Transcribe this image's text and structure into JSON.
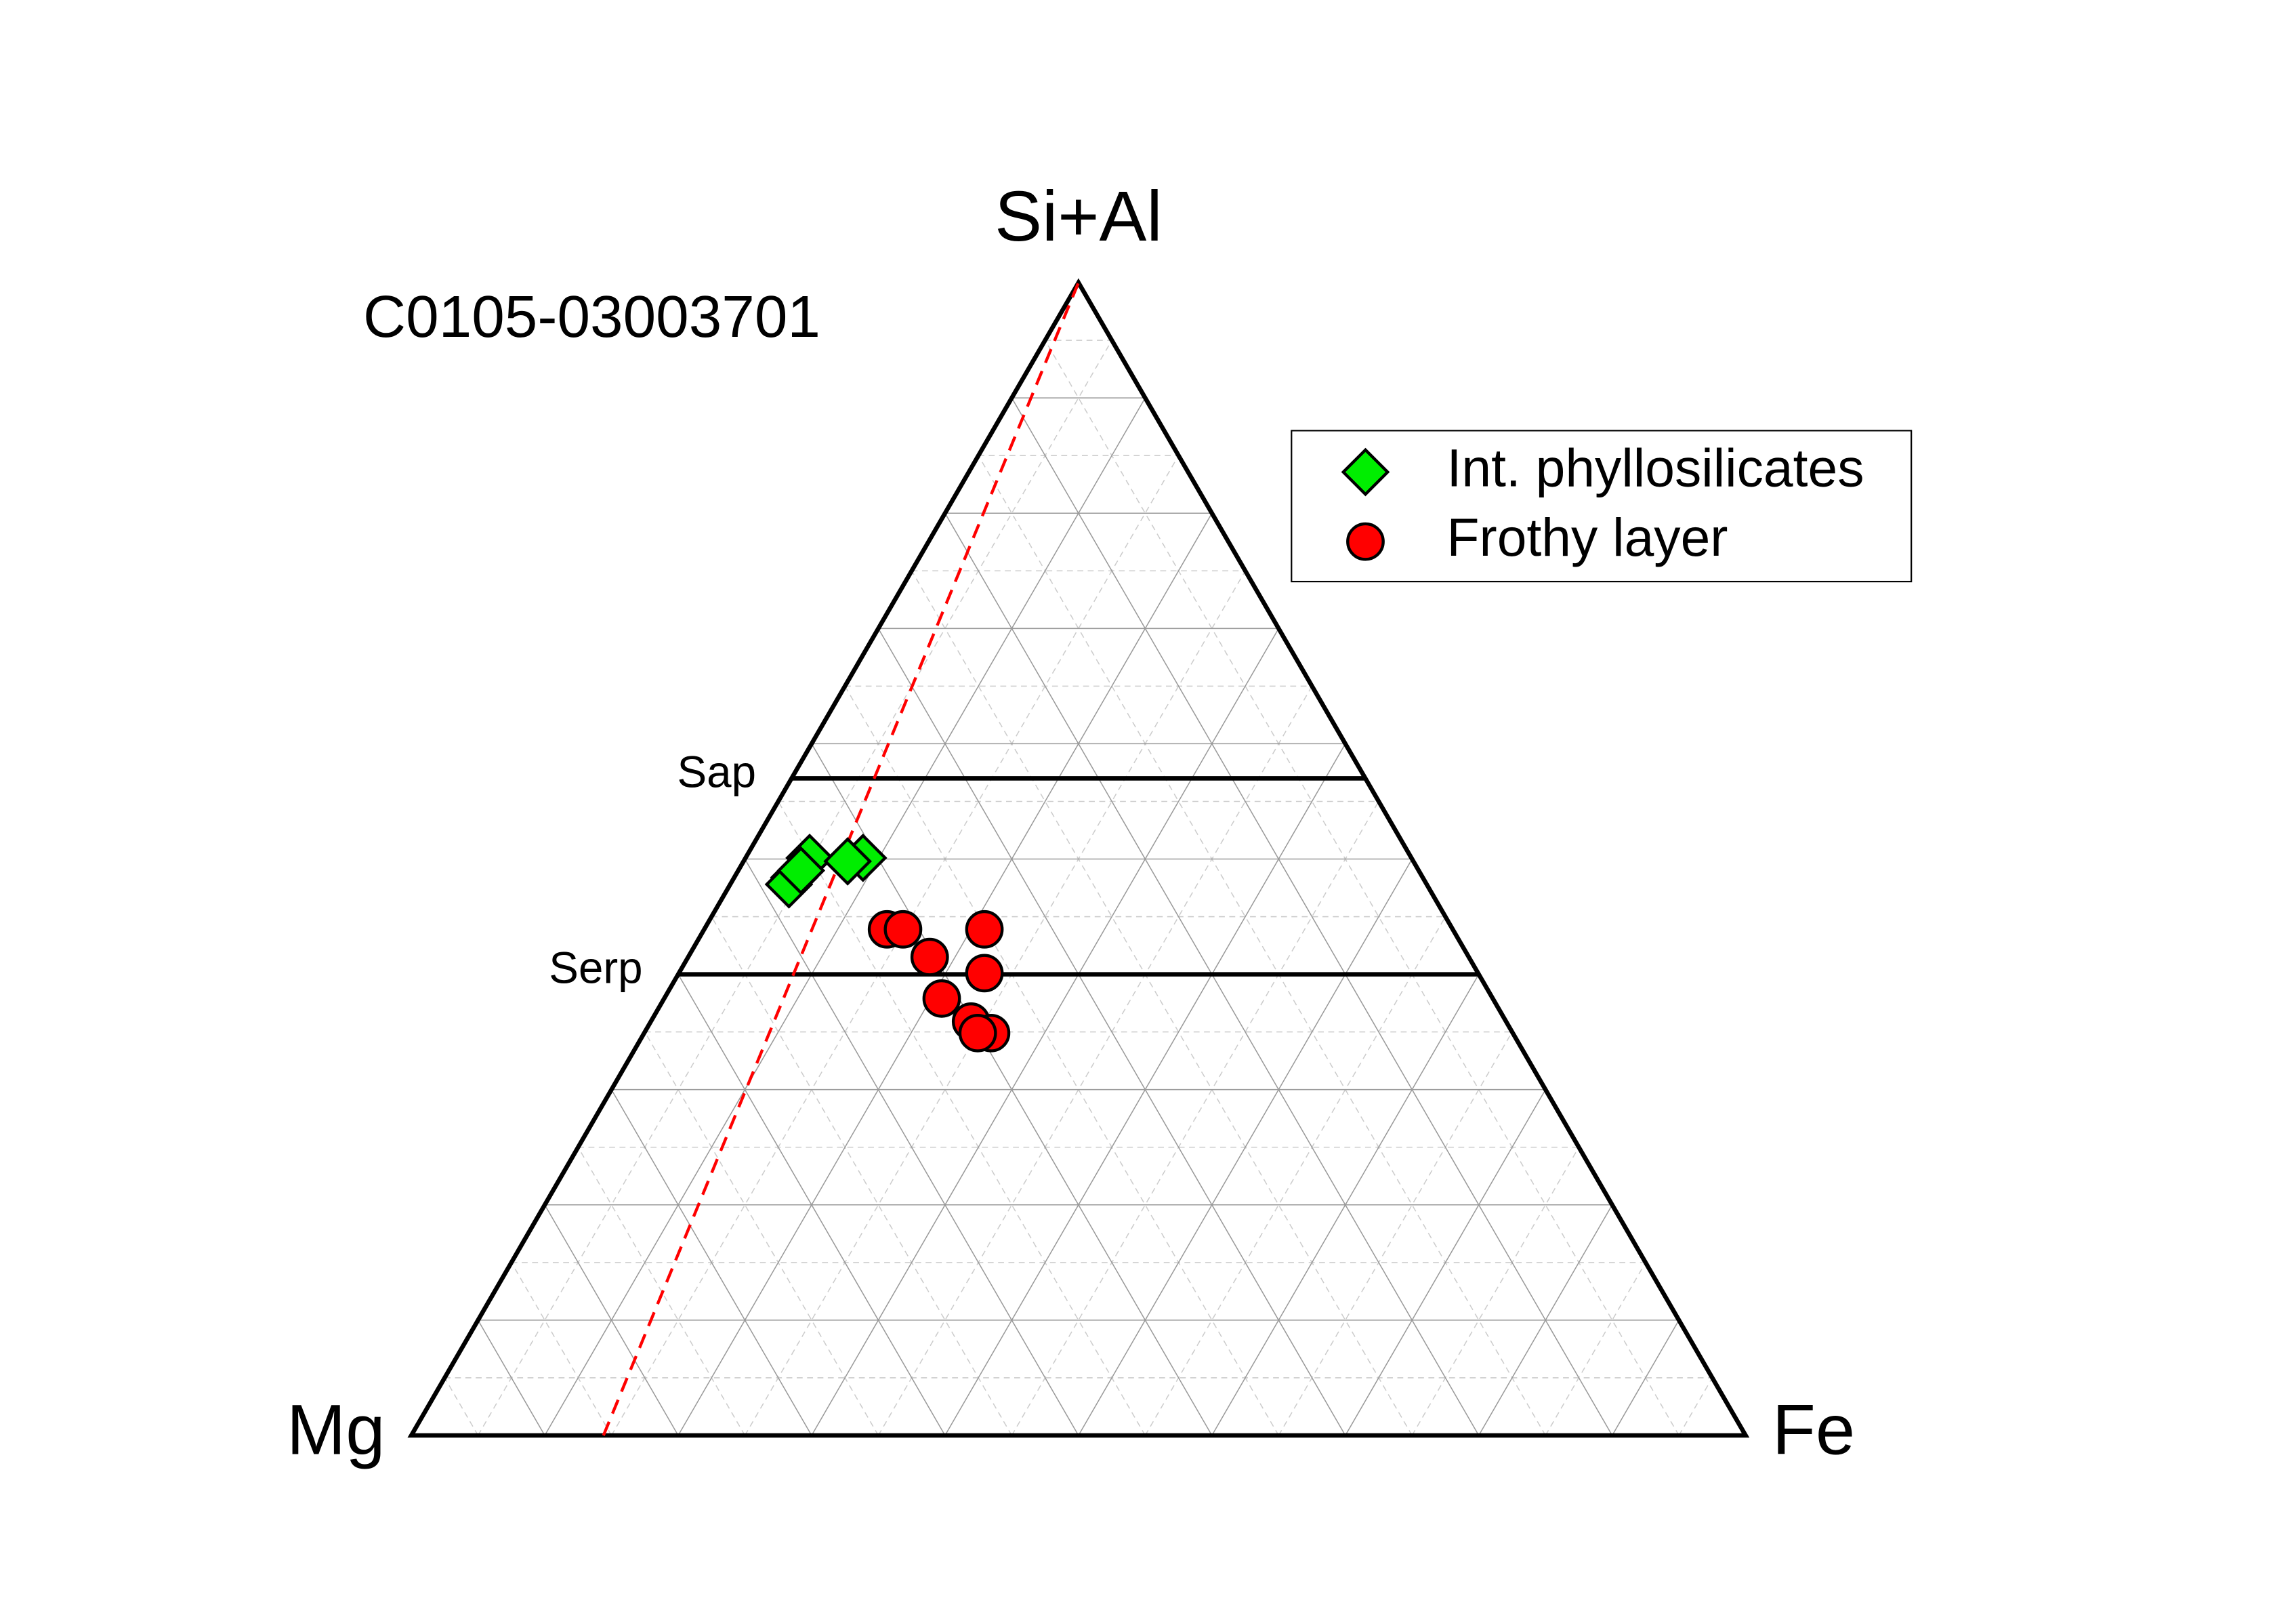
{
  "chart_data": {
    "type": "ternary",
    "title": "C0105-03003701",
    "axis_labels": {
      "top": "Si+Al",
      "left": "Mg",
      "right": "Fe"
    },
    "ticks": [
      0.1,
      0.2,
      0.3,
      0.4,
      0.5,
      0.6,
      0.7,
      0.8,
      0.9
    ],
    "minor_ticks": [
      0.05,
      0.15,
      0.25,
      0.35,
      0.45,
      0.55,
      0.65,
      0.75,
      0.85,
      0.95
    ],
    "grid": true,
    "reference_lines": [
      {
        "label": "Sap",
        "value": 0.57
      },
      {
        "label": "Serp",
        "value": 0.4
      }
    ],
    "ratio_line": {
      "Mg": 0.856,
      "Fe": 0.144,
      "color": "#ff0000"
    },
    "legend": "upper right",
    "series": [
      {
        "name": "Int. phyllosilicates",
        "color": "#00ee00",
        "marker": "diamond",
        "values": [
          [
            0.501,
            0.451,
            0.048
          ],
          [
            0.501,
            0.411,
            0.088
          ],
          [
            0.498,
            0.424,
            0.078
          ],
          [
            0.484,
            0.471,
            0.045
          ],
          [
            0.478,
            0.478,
            0.044
          ],
          [
            0.49,
            0.463,
            0.047
          ]
        ]
      },
      {
        "name": "Frothy layer",
        "color": "#ff0000",
        "marker": "circle",
        "values": [
          [
            0.439,
            0.424,
            0.137
          ],
          [
            0.439,
            0.412,
            0.149
          ],
          [
            0.439,
            0.351,
            0.21
          ],
          [
            0.415,
            0.404,
            0.181
          ],
          [
            0.401,
            0.37,
            0.229
          ],
          [
            0.379,
            0.413,
            0.208
          ],
          [
            0.359,
            0.401,
            0.24
          ],
          [
            0.349,
            0.391,
            0.26
          ],
          [
            0.349,
            0.401,
            0.25
          ]
        ]
      }
    ]
  }
}
